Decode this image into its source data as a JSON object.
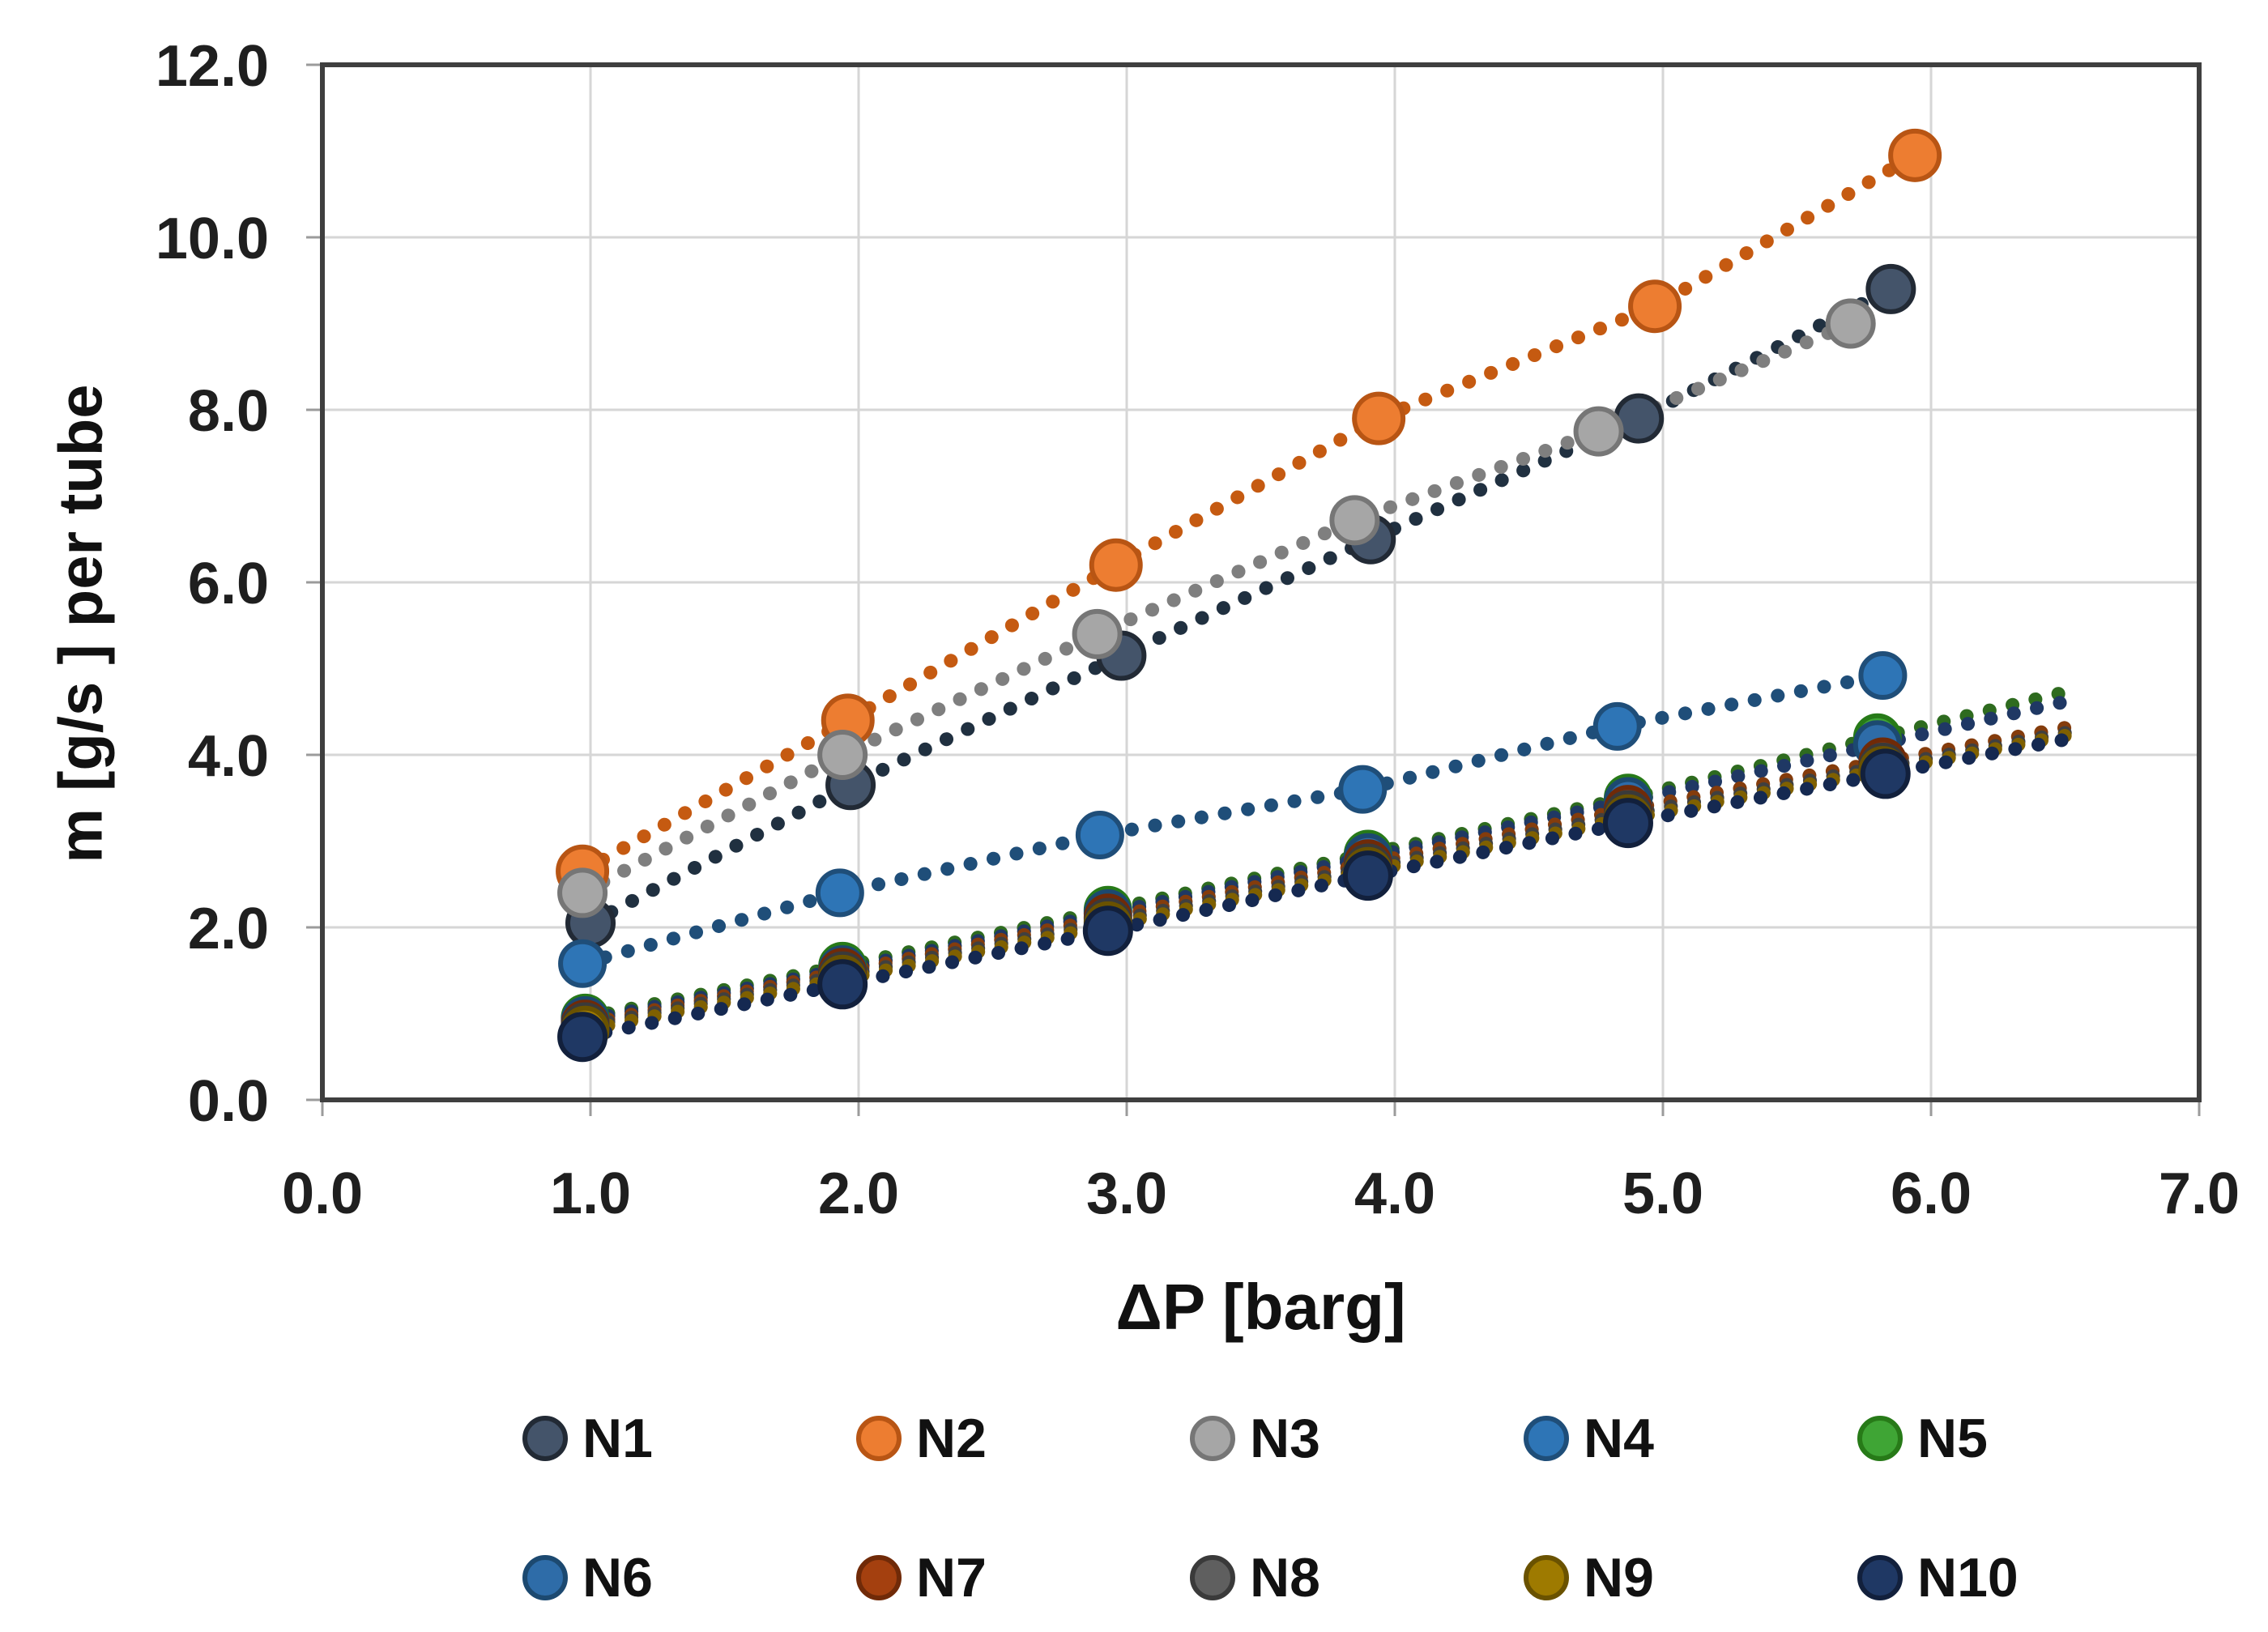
{
  "figure": {
    "background": "#FFFFFF",
    "grid_color": "#D6D6D6",
    "border_color": "#3F3F3F",
    "tick_mark_color": "#9B9B9B",
    "tick_text_color": "#1F1F1F"
  },
  "chart_data": {
    "type": "scatter",
    "title": "",
    "xlabel": "ΔP [barg]",
    "ylabel": "m [g/s ] per tube",
    "xlim": [
      0,
      7
    ],
    "ylim": [
      0,
      12
    ],
    "grid": true,
    "legend_position": "bottom",
    "x_tick_values": [
      0,
      1,
      2,
      3,
      4,
      5,
      6,
      7
    ],
    "x_tick_labels": [
      "0.0",
      "1.0",
      "2.0",
      "3.0",
      "4.0",
      "5.0",
      "6.0",
      "7.0"
    ],
    "y_tick_values": [
      0,
      2,
      4,
      6,
      8,
      10,
      12
    ],
    "y_tick_labels": [
      "0.0",
      "2.0",
      "4.0",
      "6.0",
      "8.0",
      "10.0",
      "12.0"
    ],
    "series": [
      {
        "name": "N1",
        "fill": "#44546A",
        "border": "#222A35",
        "trend": "#203040",
        "marker_r": 28,
        "trend_extend": 0,
        "x": [
          1.0,
          1.97,
          2.98,
          3.91,
          4.91,
          5.85
        ],
        "y": [
          2.05,
          3.65,
          5.15,
          6.5,
          7.9,
          9.4
        ]
      },
      {
        "name": "N2",
        "fill": "#ED7D31",
        "border": "#B85514",
        "trend": "#C55A11",
        "marker_r": 30,
        "trend_extend": 0,
        "x": [
          0.97,
          1.96,
          2.96,
          3.94,
          4.97,
          5.94
        ],
        "y": [
          2.65,
          4.4,
          6.2,
          7.9,
          9.2,
          10.95
        ]
      },
      {
        "name": "N3",
        "fill": "#A6A6A6",
        "border": "#767676",
        "trend": "#7F7F7F",
        "marker_r": 28,
        "trend_extend": 0,
        "x": [
          0.97,
          1.94,
          2.89,
          3.85,
          4.76,
          5.7
        ],
        "y": [
          2.4,
          4.0,
          5.4,
          6.72,
          7.75,
          9.0
        ]
      },
      {
        "name": "N4",
        "fill": "#2E75B6",
        "border": "#1F4E79",
        "trend": "#1F4E79",
        "marker_r": 27,
        "trend_extend": 0,
        "x": [
          0.97,
          1.93,
          2.9,
          3.88,
          4.83,
          5.82
        ],
        "y": [
          1.58,
          2.4,
          3.07,
          3.6,
          4.33,
          4.92
        ]
      },
      {
        "name": "N5",
        "fill": "#3FA535",
        "border": "#277A18",
        "trend": "#2E6B1F",
        "marker_r": 27,
        "trend_extend": 0.7,
        "x": [
          0.98,
          1.94,
          2.93,
          3.9,
          4.87,
          5.8
        ],
        "y": [
          0.95,
          1.55,
          2.2,
          2.85,
          3.5,
          4.2
        ]
      },
      {
        "name": "N6",
        "fill": "#2E6CA8",
        "border": "#1C4970",
        "trend": "#1F3864",
        "marker_r": 27,
        "trend_extend": 0.7,
        "x": [
          0.98,
          1.94,
          2.93,
          3.9,
          4.87,
          5.8
        ],
        "y": [
          0.92,
          1.51,
          2.16,
          2.81,
          3.46,
          4.12
        ]
      },
      {
        "name": "N7",
        "fill": "#A4400F",
        "border": "#702A08",
        "trend": "#843C0C",
        "marker_r": 27,
        "trend_extend": 0.7,
        "x": [
          0.98,
          1.94,
          2.93,
          3.9,
          4.87,
          5.82
        ],
        "y": [
          0.88,
          1.48,
          2.11,
          2.74,
          3.37,
          3.92
        ]
      },
      {
        "name": "N8",
        "fill": "#5F5F5F",
        "border": "#3A3A3A",
        "trend": "#404040",
        "marker_r": 27,
        "trend_extend": 0.7,
        "x": [
          0.98,
          1.94,
          2.93,
          3.9,
          4.87,
          5.82
        ],
        "y": [
          0.85,
          1.44,
          2.06,
          2.69,
          3.31,
          3.86
        ]
      },
      {
        "name": "N9",
        "fill": "#9E7A00",
        "border": "#6A5200",
        "trend": "#7F6000",
        "marker_r": 27,
        "trend_extend": 0.7,
        "x": [
          0.98,
          1.94,
          2.93,
          3.9,
          4.87,
          5.82
        ],
        "y": [
          0.81,
          1.4,
          2.02,
          2.65,
          3.26,
          3.82
        ]
      },
      {
        "name": "N10",
        "fill": "#1F3864",
        "border": "#12203C",
        "trend": "#152951",
        "marker_r": 28,
        "trend_extend": 0.7,
        "x": [
          0.97,
          1.94,
          2.93,
          3.9,
          4.87,
          5.83
        ],
        "y": [
          0.73,
          1.34,
          1.96,
          2.6,
          3.21,
          3.78
        ]
      }
    ]
  }
}
